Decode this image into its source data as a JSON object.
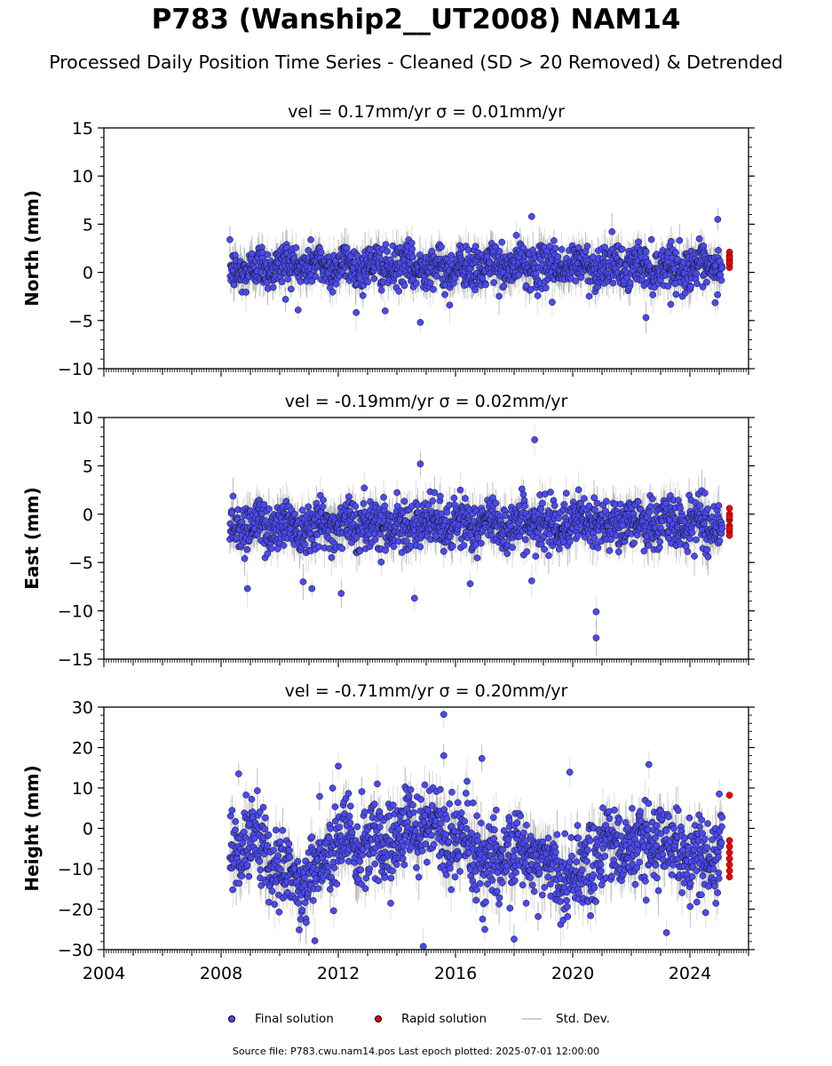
{
  "title": "P783 (Wanship2__UT2008) NAM14",
  "subtitle": "Processed Daily Position Time Series - Cleaned (SD > 20 Removed) & Detrended",
  "source_note": "Source file: P783.cwu.nam14.pos  Last epoch plotted: 2025-07-01 12:00:00",
  "legend": [
    {
      "label": "Final solution",
      "kind": "marker",
      "color": "#4a4af0"
    },
    {
      "label": "Rapid solution",
      "kind": "marker",
      "color": "#ee0000"
    },
    {
      "label": "Std. Dev.",
      "kind": "line",
      "color": "#cfcfcf"
    }
  ],
  "colors": {
    "final": "#4a4af0",
    "rapid": "#ee0000",
    "std_dev": "#bfbfbf",
    "axes": "#000000"
  },
  "chart_data": [
    {
      "type": "scatter",
      "title": "vel = 0.17mm/yr   σ = 0.01mm/yr",
      "ylabel": "North (mm)",
      "xlabel": "",
      "xlim": [
        2004,
        2026
      ],
      "ylim": [
        -10,
        15
      ],
      "yticks": [
        -10,
        -5,
        0,
        5,
        10,
        15
      ],
      "xticks": [
        2004,
        2008,
        2012,
        2016,
        2020,
        2024
      ],
      "show_xtick_labels": false,
      "data_range": [
        2008.3,
        2025.1
      ],
      "typical_sd": 1.5,
      "final_series": {
        "name": "Final solution",
        "mean": [
          [
            2008.3,
            0.0
          ],
          [
            2010,
            0.8
          ],
          [
            2013,
            0.6
          ],
          [
            2016,
            0.5
          ],
          [
            2019,
            0.7
          ],
          [
            2022,
            0.6
          ],
          [
            2025.1,
            0.4
          ]
        ],
        "spread": 1.2,
        "outliers": [
          [
            2018.6,
            5.8
          ],
          [
            2024.95,
            5.5
          ],
          [
            2014.8,
            -5.2
          ],
          [
            2013.6,
            -4.0
          ],
          [
            2022.5,
            -4.7
          ],
          [
            2019.3,
            -3.1
          ],
          [
            2015.8,
            -3.4
          ],
          [
            2010.2,
            -2.8
          ]
        ]
      },
      "rapid_series": {
        "name": "Rapid solution",
        "x": 2025.35,
        "values": [
          2.1,
          1.7,
          1.3,
          0.9,
          0.5,
          1.5,
          1.0
        ]
      }
    },
    {
      "type": "scatter",
      "title": "vel = -0.19mm/yr   σ = 0.02mm/yr",
      "ylabel": "East (mm)",
      "xlabel": "",
      "xlim": [
        2004,
        2026
      ],
      "ylim": [
        -15,
        10
      ],
      "yticks": [
        -15,
        -10,
        -5,
        0,
        5,
        10
      ],
      "xticks": [
        2004,
        2008,
        2012,
        2016,
        2020,
        2024
      ],
      "show_xtick_labels": false,
      "data_range": [
        2008.3,
        2025.1
      ],
      "typical_sd": 1.6,
      "final_series": {
        "name": "Final solution",
        "mean": [
          [
            2008.3,
            -1.0
          ],
          [
            2010,
            -1.2
          ],
          [
            2013,
            -1.0
          ],
          [
            2016,
            -1.1
          ],
          [
            2019,
            -1.0
          ],
          [
            2022,
            -0.9
          ],
          [
            2025.1,
            -1.0
          ]
        ],
        "spread": 1.4,
        "outliers": [
          [
            2018.7,
            7.7
          ],
          [
            2014.8,
            5.2
          ],
          [
            2008.9,
            -7.7
          ],
          [
            2011.1,
            -7.7
          ],
          [
            2012.1,
            -8.2
          ],
          [
            2014.6,
            -8.7
          ],
          [
            2020.8,
            -10.1
          ],
          [
            2020.8,
            -12.8
          ],
          [
            2016.5,
            -7.2
          ],
          [
            2018.6,
            -6.9
          ],
          [
            2010.8,
            -7.0
          ]
        ]
      },
      "rapid_series": {
        "name": "Rapid solution",
        "x": 2025.35,
        "values": [
          0.6,
          0.0,
          -0.6,
          -1.2,
          -1.8,
          -2.2,
          -0.3,
          -1.5
        ]
      }
    },
    {
      "type": "scatter",
      "title": "vel = -0.71mm/yr   σ = 0.20mm/yr",
      "ylabel": "Height (mm)",
      "xlabel": "",
      "xlim": [
        2004,
        2026
      ],
      "ylim": [
        -30,
        30
      ],
      "yticks": [
        -30,
        -20,
        -10,
        0,
        10,
        20,
        30
      ],
      "xticks": [
        2004,
        2008,
        2012,
        2016,
        2020,
        2024
      ],
      "show_xtick_labels": true,
      "data_range": [
        2008.3,
        2025.1
      ],
      "typical_sd": 4.5,
      "final_series": {
        "name": "Final solution",
        "mean": [
          [
            2008.3,
            -8
          ],
          [
            2009,
            -2
          ],
          [
            2010,
            -10
          ],
          [
            2011,
            -14
          ],
          [
            2012,
            -2
          ],
          [
            2013,
            -5
          ],
          [
            2014,
            -2
          ],
          [
            2015,
            0
          ],
          [
            2016,
            -2
          ],
          [
            2017,
            -10
          ],
          [
            2018,
            -5
          ],
          [
            2019,
            -8
          ],
          [
            2020,
            -12
          ],
          [
            2021,
            -6
          ],
          [
            2022,
            -4
          ],
          [
            2023,
            -3
          ],
          [
            2024,
            -8
          ],
          [
            2025.1,
            -5
          ]
        ],
        "spread": 5.5,
        "outliers": [
          [
            2015.6,
            28.2
          ],
          [
            2015.6,
            18.0
          ],
          [
            2014.9,
            -29.2
          ],
          [
            2011.2,
            -27.8
          ],
          [
            2018.0,
            -27.4
          ],
          [
            2017.0,
            -25.0
          ],
          [
            2023.2,
            -25.8
          ],
          [
            2008.6,
            13.5
          ],
          [
            2022.6,
            15.8
          ],
          [
            2019.9,
            13.9
          ],
          [
            2016.9,
            17.3
          ],
          [
            2012.0,
            15.4
          ],
          [
            2025.0,
            8.5
          ]
        ]
      },
      "rapid_series": {
        "name": "Rapid solution",
        "x": 2025.35,
        "values": [
          8.2,
          -3.0,
          -4.5,
          -6.0,
          -7.5,
          -9.0,
          -10.5,
          -12.0
        ]
      }
    }
  ]
}
